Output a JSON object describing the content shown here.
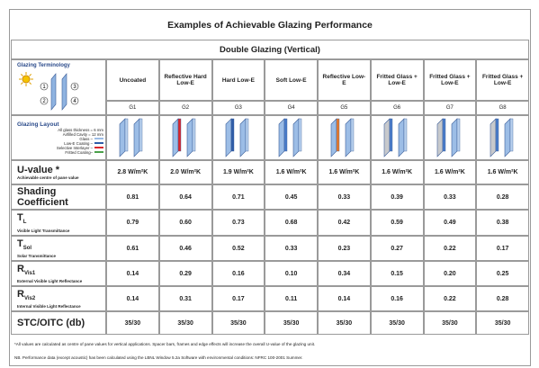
{
  "title": "Examples of Achievable Glazing Performance",
  "table": {
    "subtitle": "Double Glazing (Vertical)",
    "terminology": {
      "label": "Glazing Terminology",
      "surfaces": [
        "1",
        "2",
        "3",
        "4"
      ]
    },
    "columns": [
      {
        "name": "Uncoated",
        "code": "G1"
      },
      {
        "name": "Reflective Hard Low-E",
        "code": "G2"
      },
      {
        "name": "Hard Low-E",
        "code": "G3"
      },
      {
        "name": "Soft Low-E",
        "code": "G4"
      },
      {
        "name": "Reflective Low-E",
        "code": "G5"
      },
      {
        "name": "Fritted Glass + Low-E",
        "code": "G6"
      },
      {
        "name": "Fritted Glass + Low-E",
        "code": "G7"
      },
      {
        "name": "Fritted Glass + Low-E",
        "code": "G8"
      }
    ],
    "layout": {
      "label": "Glazing Layout",
      "notes": [
        "All glass thickness = 6 mm",
        "Airfilled Cavity = 12 mm",
        "Glass –",
        "Low-E Coating –",
        "Selective Interlayer –",
        "Fritted Coating–"
      ]
    },
    "rows": [
      {
        "symbol": "U-value *",
        "desc": "Achievable centre of pane value",
        "values": [
          "2.8 W/m²K",
          "2.0 W/m²K",
          "1.9 W/m²K",
          "1.6 W/m²K",
          "1.6 W/m²K",
          "1.6 W/m²K",
          "1.6 W/m²K",
          "1.6 W/m²K"
        ]
      },
      {
        "symbol": "Shading Coefficient",
        "values": [
          "0.81",
          "0.64",
          "0.71",
          "0.45",
          "0.33",
          "0.39",
          "0.33",
          "0.28"
        ]
      },
      {
        "symbol": "T",
        "sub": "L",
        "desc": "Visible Light Transmittance",
        "values": [
          "0.79",
          "0.60",
          "0.73",
          "0.68",
          "0.42",
          "0.59",
          "0.49",
          "0.38"
        ]
      },
      {
        "symbol": "T",
        "sub": "Sol",
        "desc": "Solar Transmittance",
        "values": [
          "0.61",
          "0.46",
          "0.52",
          "0.33",
          "0.23",
          "0.27",
          "0.22",
          "0.17"
        ]
      },
      {
        "symbol": "R",
        "sub": "Vis1",
        "desc": "External Visible Light Reflectance",
        "values": [
          "0.14",
          "0.29",
          "0.16",
          "0.10",
          "0.34",
          "0.15",
          "0.20",
          "0.25"
        ]
      },
      {
        "symbol": "R",
        "sub": "Vis2",
        "desc": "Internal Visible Light Reflectance",
        "values": [
          "0.14",
          "0.31",
          "0.17",
          "0.11",
          "0.14",
          "0.16",
          "0.22",
          "0.28"
        ]
      },
      {
        "symbol": "STC/OITC (db)",
        "values": [
          "35/30",
          "35/30",
          "35/30",
          "35/30",
          "35/30",
          "35/30",
          "35/30",
          "35/30"
        ]
      }
    ]
  },
  "footnotes": [
    "*All values are calculated as centre of pane values for vertical applications. Spacer bars, frames and edge effects will increase the overall U-value of the glazing unit.",
    "NB. Performance data (except acoustic) has been calculated using the LBNL Window 5.2a Software with environmental conditions: NFRC 100-2001 Summer."
  ]
}
